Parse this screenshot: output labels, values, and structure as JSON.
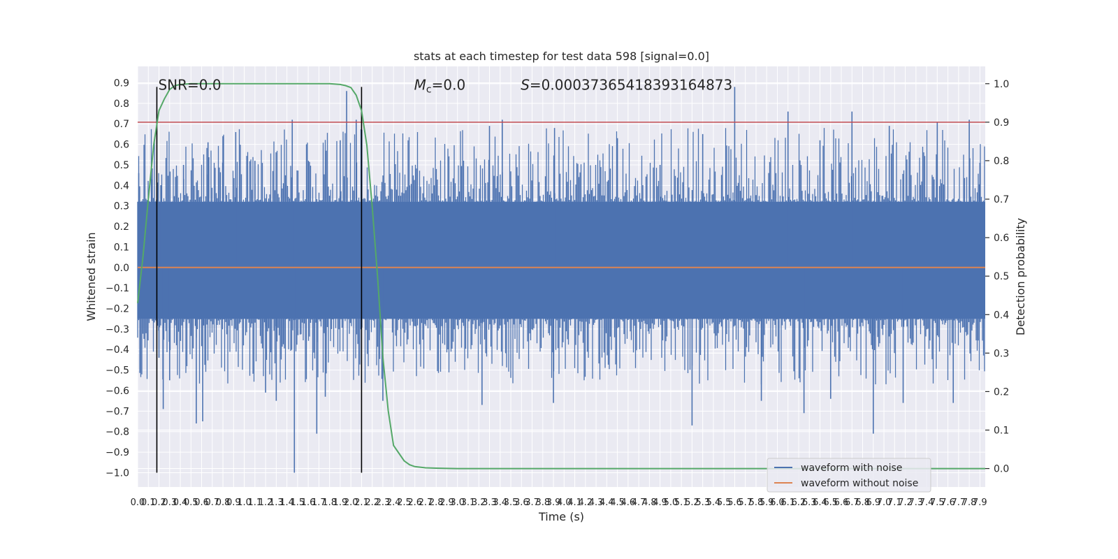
{
  "chart_data": {
    "type": "line",
    "title": "stats at each timestep for test data 598 [signal=0.0]",
    "xlabel": "Time (s)",
    "ylabel": "Whitened strain",
    "ylabel_right": "Detection probability",
    "xlim": [
      0.0,
      7.95
    ],
    "ylim": [
      -1.07,
      0.98
    ],
    "ylim_right": [
      -0.048,
      1.045
    ],
    "x_ticks": [
      "0.0",
      "0.1",
      "0.2",
      "0.3",
      "0.4",
      "0.5",
      "0.6",
      "0.7",
      "0.8",
      "0.9",
      "1.0",
      "1.1",
      "1.2",
      "1.3",
      "1.4",
      "1.5",
      "1.6",
      "1.7",
      "1.8",
      "1.9",
      "2.0",
      "2.1",
      "2.2",
      "2.3",
      "2.4",
      "2.5",
      "2.6",
      "2.7",
      "2.8",
      "2.9",
      "3.0",
      "3.1",
      "3.2",
      "3.3",
      "3.4",
      "3.5",
      "3.6",
      "3.7",
      "3.8",
      "3.9",
      "4.0",
      "4.1",
      "4.2",
      "4.3",
      "4.4",
      "4.5",
      "4.6",
      "4.7",
      "4.8",
      "4.9",
      "5.0",
      "5.1",
      "5.2",
      "5.3",
      "5.4",
      "5.5",
      "5.6",
      "5.7",
      "5.8",
      "5.9",
      "6.0",
      "6.1",
      "6.2",
      "6.3",
      "6.4",
      "6.5",
      "6.6",
      "6.7",
      "6.8",
      "6.9",
      "7.0",
      "7.1",
      "7.2",
      "7.3",
      "7.4",
      "7.5",
      "7.6",
      "7.7",
      "7.8",
      "7.9"
    ],
    "y_ticks": [
      "−1.0",
      "−0.9",
      "−0.8",
      "−0.7",
      "−0.6",
      "−0.5",
      "−0.4",
      "−0.3",
      "−0.2",
      "−0.1",
      "0.0",
      "0.1",
      "0.2",
      "0.3",
      "0.4",
      "0.5",
      "0.6",
      "0.7",
      "0.8",
      "0.9"
    ],
    "y_ticks_right": [
      "0.0",
      "0.1",
      "0.2",
      "0.3",
      "0.4",
      "0.5",
      "0.6",
      "0.7",
      "0.8",
      "0.9",
      "1.0"
    ],
    "grid": true,
    "legend_position": "bottom-right",
    "series": [
      {
        "name": "waveform with noise",
        "color": "#4c72b0",
        "axis": "left",
        "description_envelope_upper": 0.32,
        "description_envelope_lower": -0.25,
        "spikes": [
          {
            "x": 0.01,
            "y": 0.46
          },
          {
            "x": 0.13,
            "y": 0.43
          },
          {
            "x": 0.22,
            "y": 0.4
          },
          {
            "x": 0.2,
            "y": -0.44
          },
          {
            "x": 0.24,
            "y": -0.69
          },
          {
            "x": 0.3,
            "y": -0.55
          },
          {
            "x": 0.43,
            "y": 0.5
          },
          {
            "x": 0.55,
            "y": -0.76
          },
          {
            "x": 0.61,
            "y": -0.75
          },
          {
            "x": 0.66,
            "y": 0.61
          },
          {
            "x": 0.8,
            "y": 0.64
          },
          {
            "x": 0.92,
            "y": 0.66
          },
          {
            "x": 1.1,
            "y": 0.52
          },
          {
            "x": 1.2,
            "y": -0.61
          },
          {
            "x": 1.3,
            "y": -0.65
          },
          {
            "x": 1.45,
            "y": 0.72
          },
          {
            "x": 1.47,
            "y": -1.0
          },
          {
            "x": 1.68,
            "y": -0.81
          },
          {
            "x": 1.76,
            "y": -0.63
          },
          {
            "x": 1.96,
            "y": 0.86
          },
          {
            "x": 1.9,
            "y": 0.62
          },
          {
            "x": 2.05,
            "y": 0.72
          },
          {
            "x": 2.3,
            "y": -0.65
          },
          {
            "x": 2.55,
            "y": 0.4
          },
          {
            "x": 3.23,
            "y": -0.67
          },
          {
            "x": 3.3,
            "y": 0.69
          },
          {
            "x": 3.42,
            "y": 0.72
          },
          {
            "x": 3.9,
            "y": -0.66
          },
          {
            "x": 3.91,
            "y": 0.68
          },
          {
            "x": 4.5,
            "y": 0.63
          },
          {
            "x": 4.9,
            "y": 0.5
          },
          {
            "x": 5.2,
            "y": -0.77
          },
          {
            "x": 5.3,
            "y": 0.65
          },
          {
            "x": 5.6,
            "y": 0.88
          },
          {
            "x": 5.85,
            "y": -0.65
          },
          {
            "x": 6.1,
            "y": 0.76
          },
          {
            "x": 6.25,
            "y": -0.71
          },
          {
            "x": 6.4,
            "y": 0.62
          },
          {
            "x": 6.5,
            "y": -0.64
          },
          {
            "x": 6.7,
            "y": 0.76
          },
          {
            "x": 6.9,
            "y": -0.81
          },
          {
            "x": 7.05,
            "y": 0.69
          },
          {
            "x": 7.18,
            "y": -0.66
          },
          {
            "x": 7.5,
            "y": 0.71
          },
          {
            "x": 7.65,
            "y": -0.66
          },
          {
            "x": 7.8,
            "y": 0.72
          },
          {
            "x": 7.9,
            "y": 0.51
          }
        ]
      },
      {
        "name": "waveform without noise",
        "color": "#dd8452",
        "axis": "left",
        "x": [
          0.0,
          7.95
        ],
        "y": [
          0.0,
          0.0
        ]
      },
      {
        "name": "detection probability",
        "color": "#55a868",
        "axis": "right",
        "x": [
          0.0,
          0.05,
          0.1,
          0.15,
          0.2,
          0.25,
          0.3,
          0.35,
          0.4,
          0.5,
          0.6,
          0.8,
          1.0,
          1.5,
          1.8,
          1.9,
          1.95,
          2.0,
          2.05,
          2.1,
          2.15,
          2.2,
          2.25,
          2.3,
          2.35,
          2.4,
          2.45,
          2.5,
          2.55,
          2.6,
          2.7,
          2.8,
          3.0,
          3.5,
          5.0,
          7.95
        ],
        "y": [
          0.43,
          0.55,
          0.7,
          0.84,
          0.93,
          0.96,
          0.985,
          0.995,
          0.998,
          1.0,
          1.0,
          1.0,
          1.0,
          1.0,
          1.0,
          0.998,
          0.995,
          0.99,
          0.97,
          0.93,
          0.84,
          0.68,
          0.5,
          0.29,
          0.15,
          0.06,
          0.04,
          0.02,
          0.01,
          0.005,
          0.002,
          0.001,
          0.0,
          0.0,
          0.0,
          0.0
        ]
      }
    ],
    "threshold": {
      "axis": "right",
      "y": 0.9,
      "color": "#c44e52"
    },
    "vlines": [
      {
        "x": 0.18,
        "y_top": 0.88,
        "y_bottom": -1.0
      },
      {
        "x": 2.1,
        "y_top": 0.88,
        "y_bottom": -1.0
      }
    ],
    "annotations": [
      {
        "text": "SNR=0.0",
        "x": 0.18,
        "y": 0.89
      },
      {
        "text": "=0.0",
        "prefix_symbol": "M",
        "sub": "c",
        "x": 2.58,
        "y": 0.89
      },
      {
        "text": "=0.00037365418393164873",
        "prefix_symbol": "S",
        "x": 3.58,
        "y": 0.89
      }
    ],
    "colors": {
      "background": "#eaeaf2",
      "grid": "#ffffff",
      "vline": "#000000"
    }
  }
}
